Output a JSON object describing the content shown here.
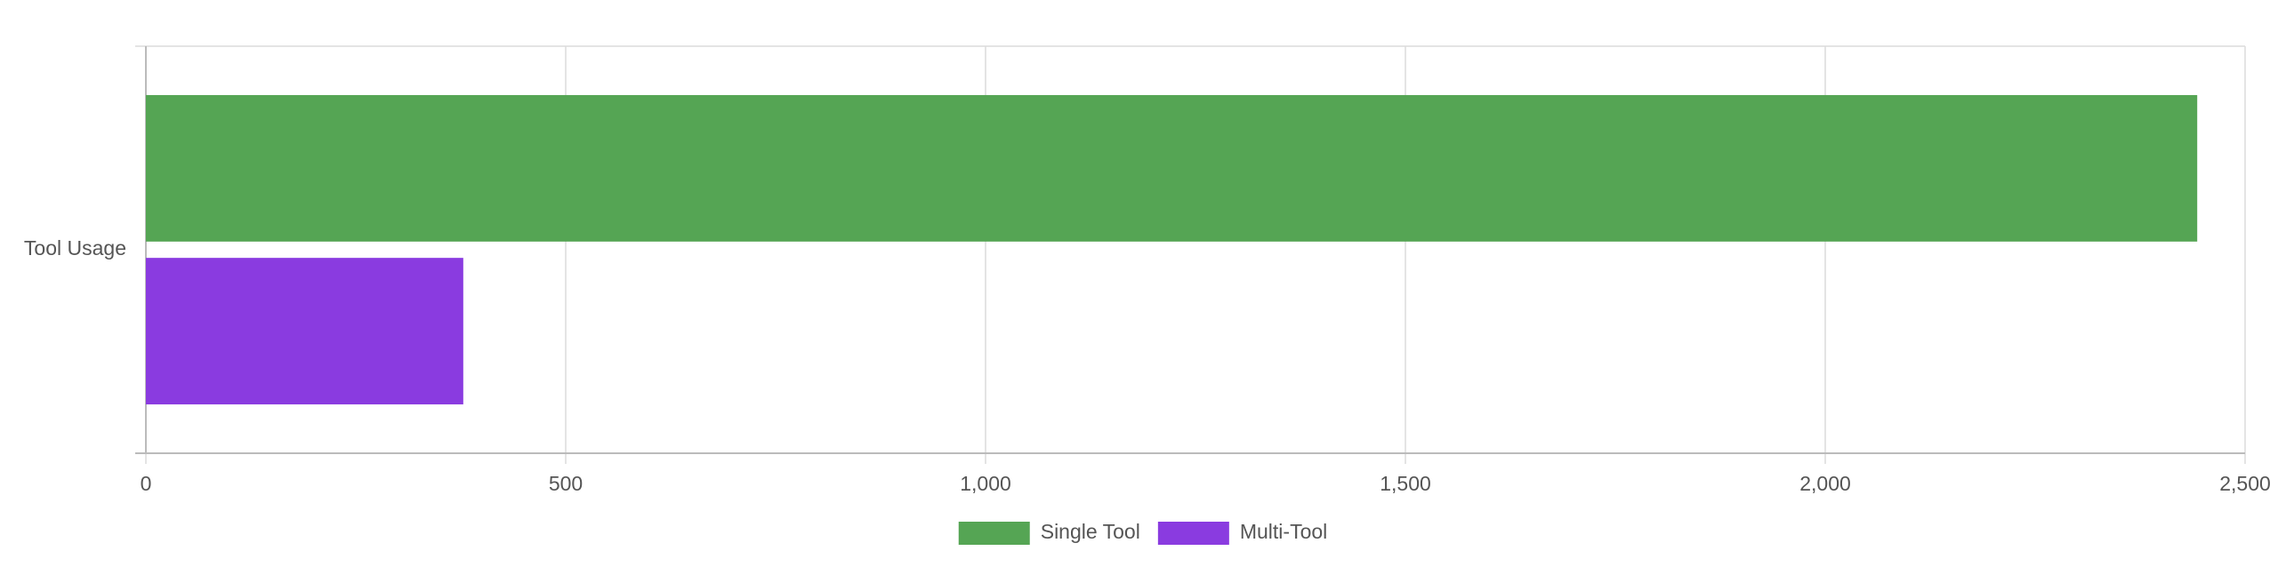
{
  "chart_data": {
    "type": "bar",
    "horizontal": true,
    "categories": [
      "Tool Usage"
    ],
    "series": [
      {
        "name": "Single Tool",
        "color": "#55a554",
        "values": [
          2443
        ]
      },
      {
        "name": "Multi-Tool",
        "color": "#8a3be0",
        "values": [
          378
        ]
      }
    ],
    "xlim": [
      0,
      2500
    ],
    "xticks": [
      0,
      500,
      {
        "value": 1000,
        "label": "1,000"
      },
      {
        "value": 1500,
        "label": "1,500"
      },
      {
        "value": 2000,
        "label": "2,000"
      },
      {
        "value": 2500,
        "label": "2,500"
      }
    ],
    "grid": true,
    "legend": "bottom"
  }
}
